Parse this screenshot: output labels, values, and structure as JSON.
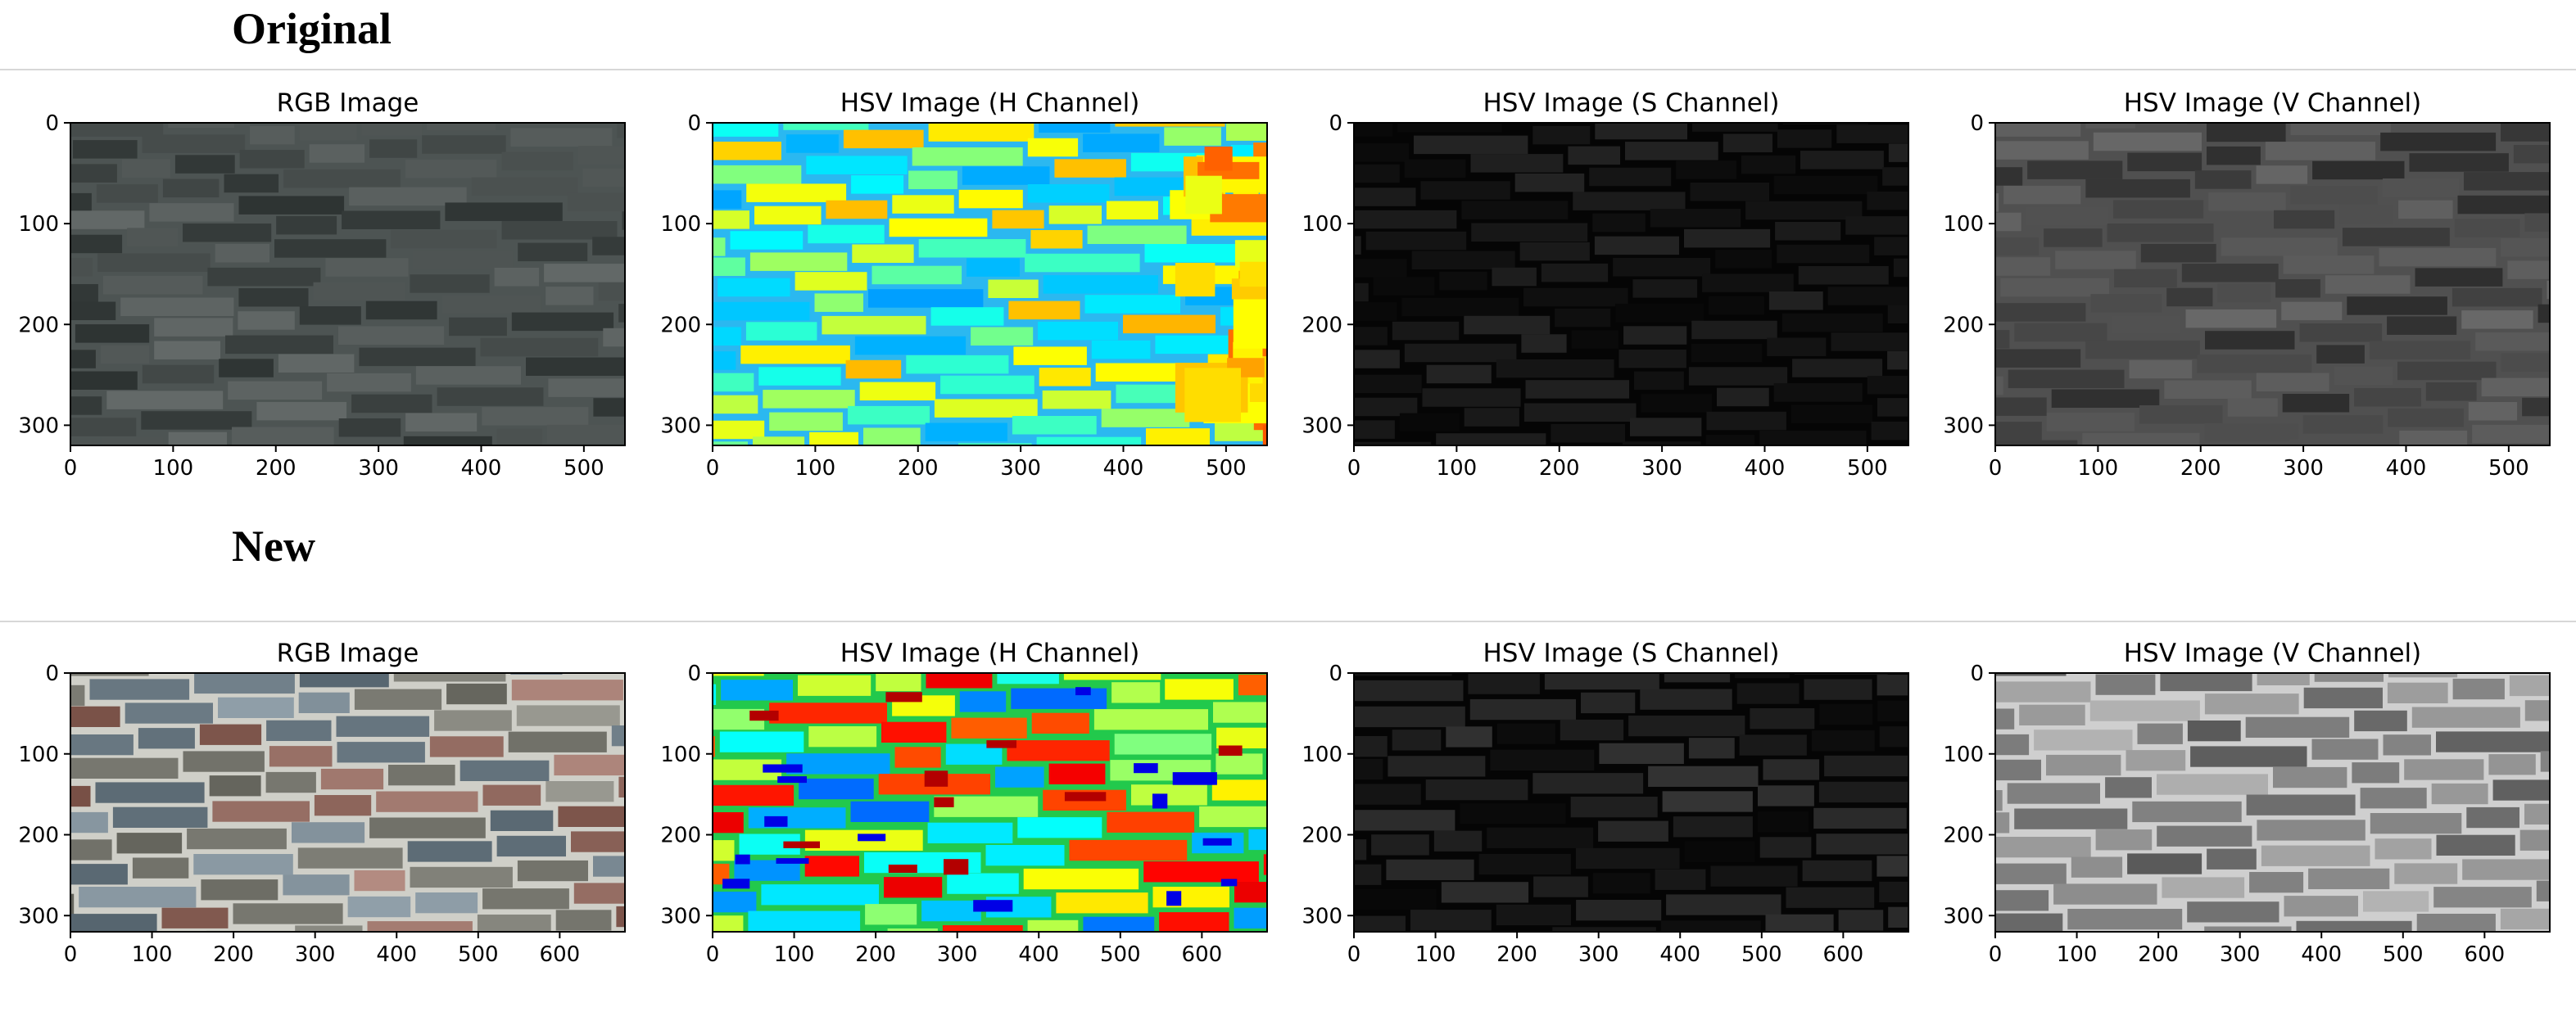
{
  "sections": [
    {
      "heading": "Original",
      "panels": [
        {
          "title": "RGB Image",
          "y_ticks": [
            "0",
            "100",
            "200",
            "300"
          ],
          "x_ticks": [
            "0",
            "100",
            "200",
            "300",
            "400",
            "500"
          ],
          "image_kind": "rgb-wall-original"
        },
        {
          "title": "HSV Image (H Channel)",
          "y_ticks": [
            "0",
            "100",
            "200",
            "300"
          ],
          "x_ticks": [
            "0",
            "100",
            "200",
            "300",
            "400",
            "500"
          ],
          "image_kind": "h-channel-original"
        },
        {
          "title": "HSV Image (S Channel)",
          "y_ticks": [
            "0",
            "100",
            "200",
            "300"
          ],
          "x_ticks": [
            "0",
            "100",
            "200",
            "300",
            "400",
            "500"
          ],
          "image_kind": "s-channel-original"
        },
        {
          "title": "HSV Image (V Channel)",
          "y_ticks": [
            "0",
            "100",
            "200",
            "300"
          ],
          "x_ticks": [
            "0",
            "100",
            "200",
            "300",
            "400",
            "500"
          ],
          "image_kind": "v-channel-original"
        }
      ]
    },
    {
      "heading": "New",
      "panels": [
        {
          "title": "RGB Image",
          "y_ticks": [
            "0",
            "100",
            "200",
            "300"
          ],
          "x_ticks": [
            "0",
            "100",
            "200",
            "300",
            "400",
            "500",
            "600"
          ],
          "image_kind": "rgb-wall-new"
        },
        {
          "title": "HSV Image (H Channel)",
          "y_ticks": [
            "0",
            "100",
            "200",
            "300"
          ],
          "x_ticks": [
            "0",
            "100",
            "200",
            "300",
            "400",
            "500",
            "600"
          ],
          "image_kind": "h-channel-new"
        },
        {
          "title": "HSV Image (S Channel)",
          "y_ticks": [
            "0",
            "100",
            "200",
            "300"
          ],
          "x_ticks": [
            "0",
            "100",
            "200",
            "300",
            "400",
            "500",
            "600"
          ],
          "image_kind": "s-channel-new"
        },
        {
          "title": "HSV Image (V Channel)",
          "y_ticks": [
            "0",
            "100",
            "200",
            "300"
          ],
          "x_ticks": [
            "0",
            "100",
            "200",
            "300",
            "400",
            "500",
            "600"
          ],
          "image_kind": "v-channel-new"
        }
      ]
    }
  ]
}
